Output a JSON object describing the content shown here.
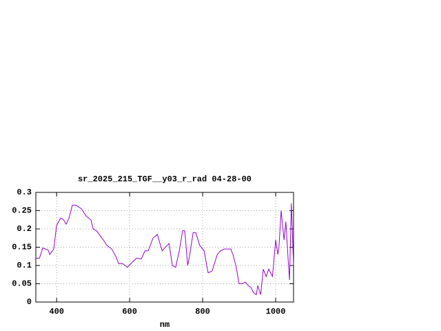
{
  "chart_data": {
    "type": "line",
    "title": "sr_2025_215_TGF__y03_r_rad 04-28-00",
    "x_label": "nm",
    "x": [
      343,
      353,
      362,
      377,
      381,
      392,
      400,
      411,
      419,
      426,
      434,
      443,
      453,
      468,
      481,
      494,
      500,
      509,
      528,
      538,
      551,
      562,
      570,
      581,
      594,
      608,
      619,
      632,
      642,
      651,
      664,
      676,
      689,
      698,
      708,
      717,
      726,
      736,
      745,
      751,
      759,
      764,
      774,
      781,
      792,
      804,
      815,
      826,
      840,
      849,
      859,
      877,
      883,
      891,
      900,
      909,
      917,
      925,
      932,
      940,
      947,
      951,
      959,
      966,
      974,
      981,
      991,
      994,
      1000,
      1006,
      1009,
      1015,
      1023,
      1028,
      1034,
      1038,
      1043,
      1049
    ],
    "series": [
      {
        "color": "#9400d3",
        "values": [
          0.12,
          0.12,
          0.148,
          0.142,
          0.13,
          0.145,
          0.21,
          0.23,
          0.225,
          0.213,
          0.23,
          0.265,
          0.265,
          0.255,
          0.235,
          0.225,
          0.2,
          0.195,
          0.17,
          0.155,
          0.145,
          0.125,
          0.105,
          0.105,
          0.095,
          0.11,
          0.12,
          0.118,
          0.14,
          0.14,
          0.175,
          0.185,
          0.14,
          0.15,
          0.16,
          0.1,
          0.095,
          0.14,
          0.195,
          0.195,
          0.1,
          0.125,
          0.19,
          0.19,
          0.155,
          0.14,
          0.08,
          0.085,
          0.13,
          0.14,
          0.145,
          0.145,
          0.13,
          0.1,
          0.05,
          0.05,
          0.055,
          0.045,
          0.04,
          0.025,
          0.02,
          0.045,
          0.02,
          0.09,
          0.07,
          0.09,
          0.07,
          0.1,
          0.17,
          0.13,
          0.15,
          0.25,
          0.17,
          0.22,
          0.12,
          0.06,
          0.27,
          0.1
        ]
      }
    ],
    "xlim": [
      343,
      1049
    ],
    "ylim": [
      0,
      0.3
    ],
    "xticks": [
      400,
      600,
      800,
      1000
    ],
    "yticks": [
      0,
      0.05,
      0.1,
      0.15,
      0.2,
      0.25,
      0.3
    ],
    "grid": true
  }
}
